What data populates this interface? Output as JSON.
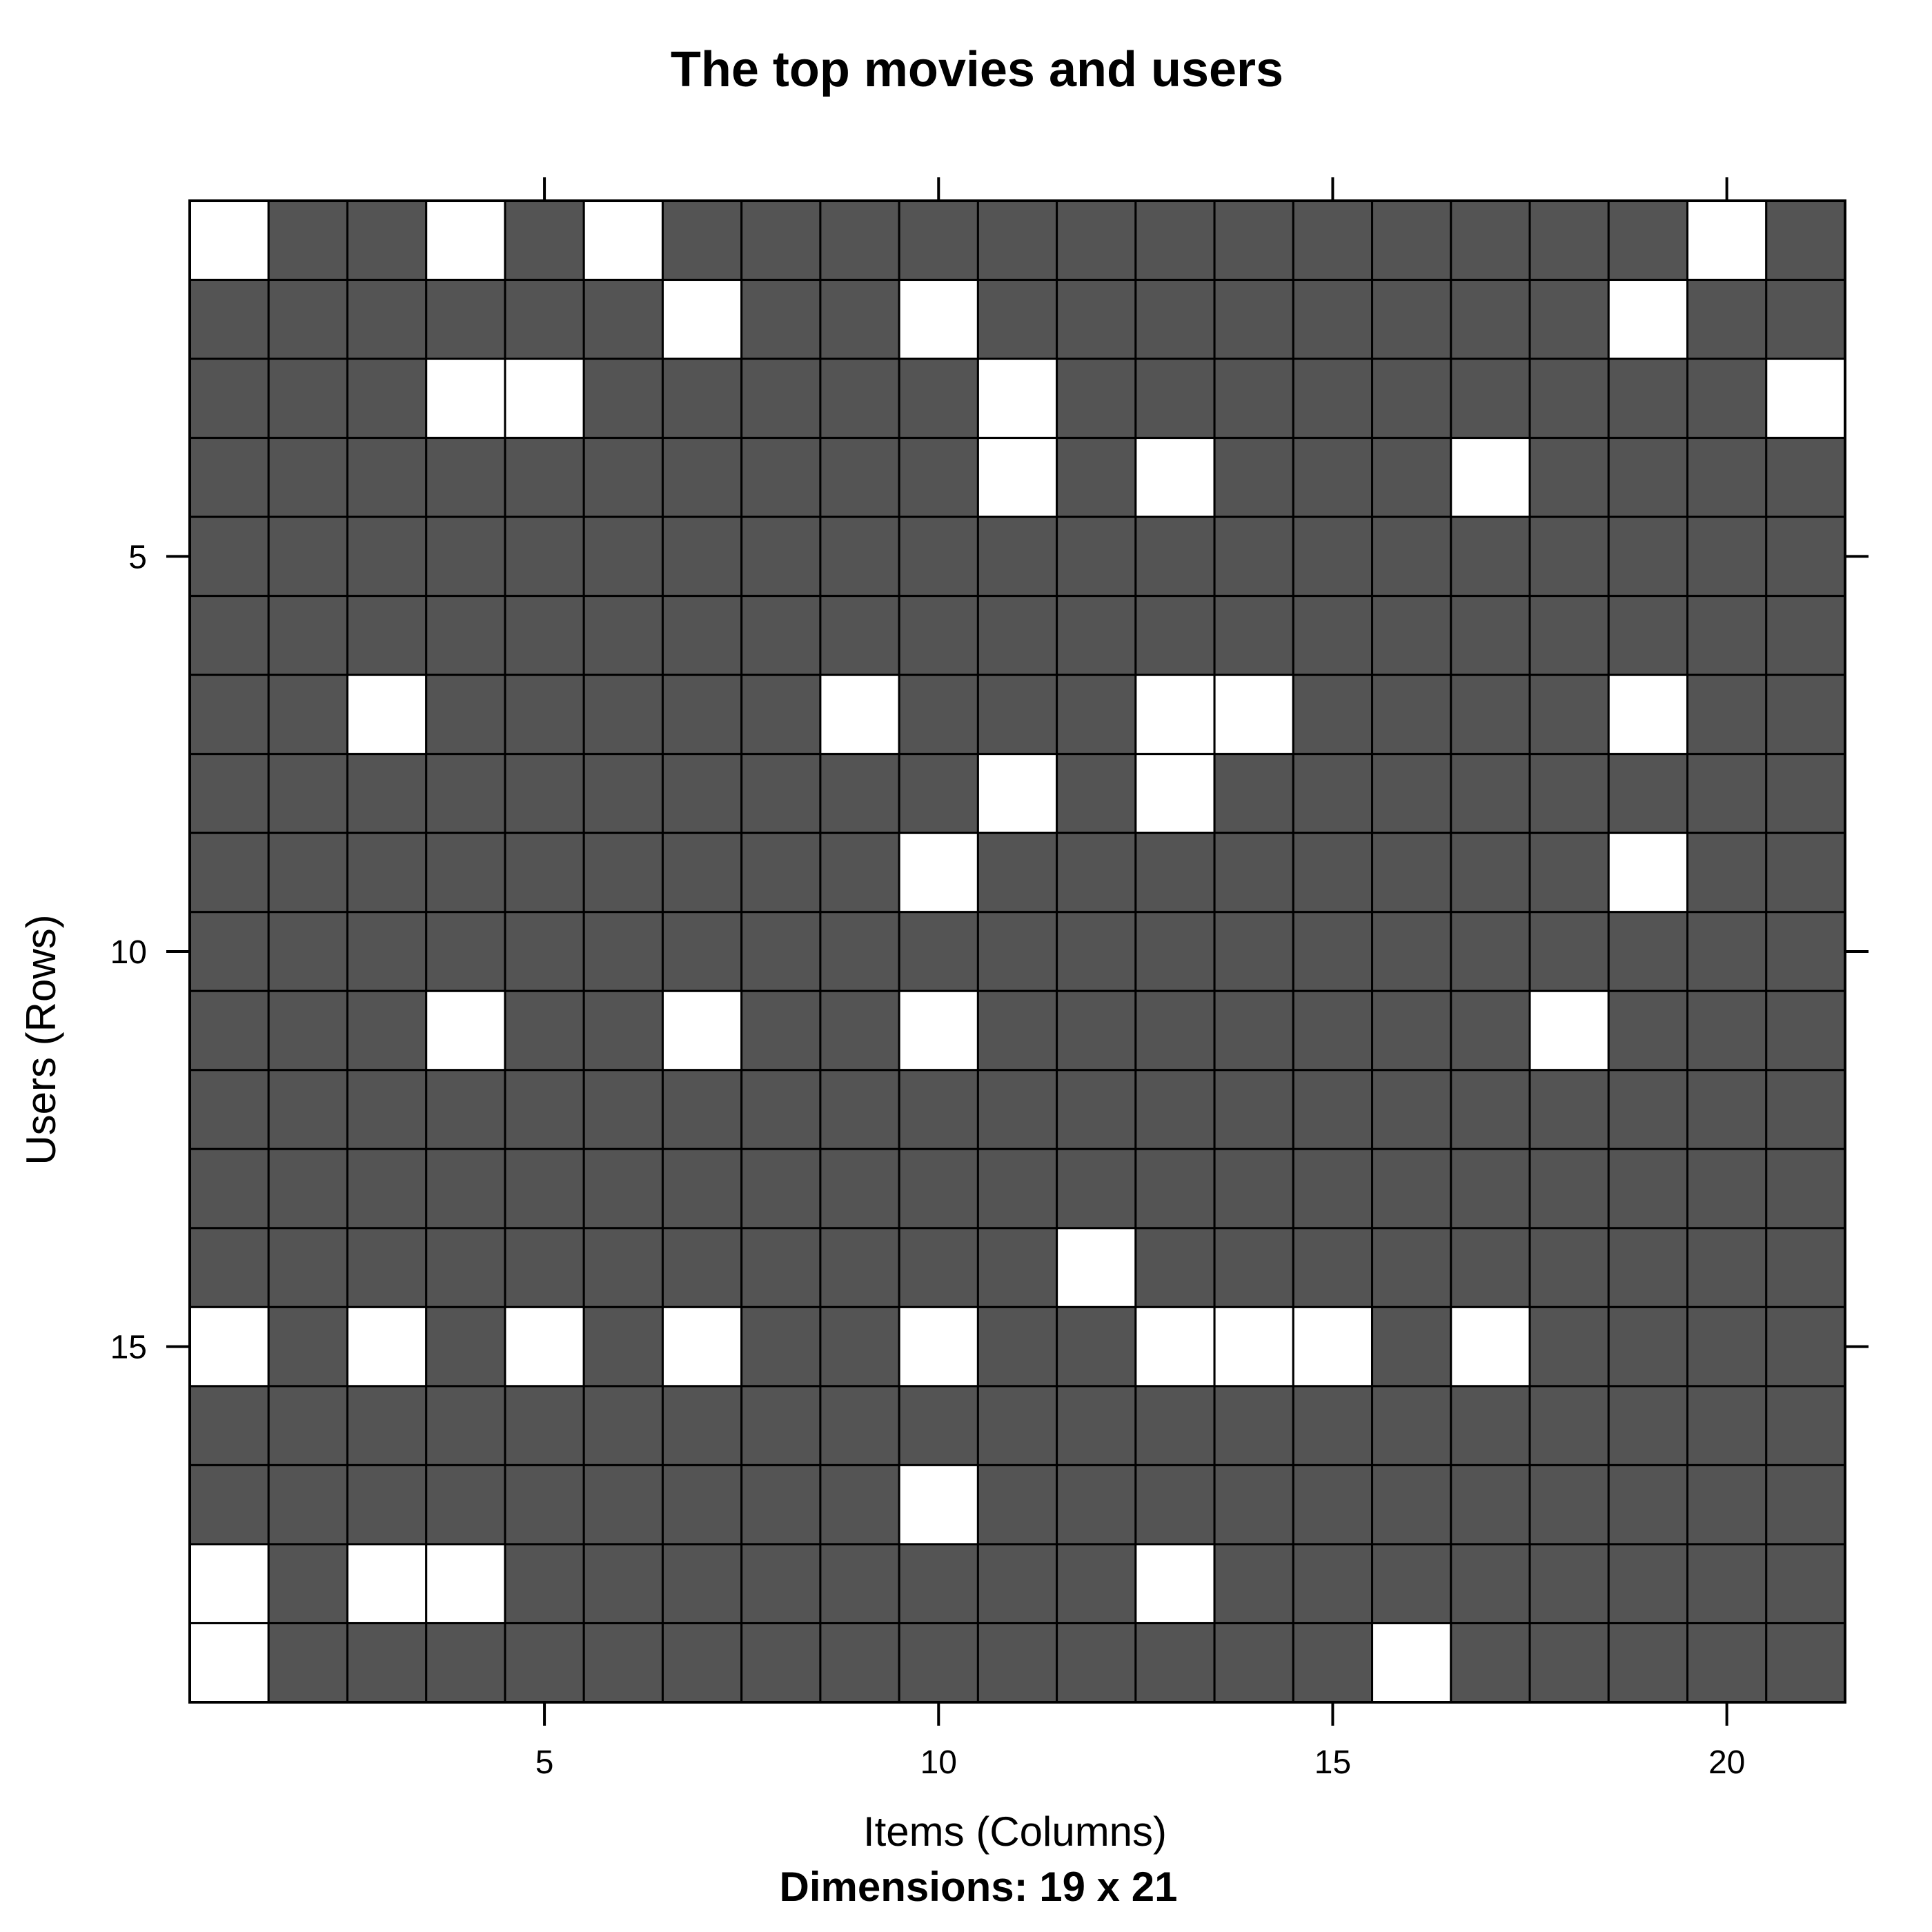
{
  "chart_data": {
    "type": "heatmap",
    "title": "The top movies and users",
    "xlabel": "Items (Columns)",
    "ylabel": "Users (Rows)",
    "sub": "Dimensions: 19 x 21",
    "n_rows": 19,
    "n_cols": 21,
    "x_ticks": [
      5,
      10,
      15,
      20
    ],
    "y_ticks": [
      5,
      10,
      15
    ],
    "xlim": [
      0.5,
      21.5
    ],
    "ylim": [
      0.5,
      19.5
    ],
    "colors": {
      "filled": "#545454",
      "empty": "#ffffff",
      "border": "#000000"
    },
    "matrix": [
      [
        0,
        1,
        1,
        0,
        1,
        0,
        1,
        1,
        1,
        1,
        1,
        1,
        1,
        1,
        1,
        1,
        1,
        1,
        1,
        0,
        1
      ],
      [
        1,
        1,
        1,
        1,
        1,
        1,
        0,
        1,
        1,
        0,
        1,
        1,
        1,
        1,
        1,
        1,
        1,
        1,
        0,
        1,
        1
      ],
      [
        1,
        1,
        1,
        0,
        0,
        1,
        1,
        1,
        1,
        1,
        0,
        1,
        1,
        1,
        1,
        1,
        1,
        1,
        1,
        1,
        0
      ],
      [
        1,
        1,
        1,
        1,
        1,
        1,
        1,
        1,
        1,
        1,
        0,
        1,
        0,
        1,
        1,
        1,
        0,
        1,
        1,
        1,
        1
      ],
      [
        1,
        1,
        1,
        1,
        1,
        1,
        1,
        1,
        1,
        1,
        1,
        1,
        1,
        1,
        1,
        1,
        1,
        1,
        1,
        1,
        1
      ],
      [
        1,
        1,
        1,
        1,
        1,
        1,
        1,
        1,
        1,
        1,
        1,
        1,
        1,
        1,
        1,
        1,
        1,
        1,
        1,
        1,
        1
      ],
      [
        1,
        1,
        0,
        1,
        1,
        1,
        1,
        1,
        0,
        1,
        1,
        1,
        0,
        0,
        1,
        1,
        1,
        1,
        0,
        1,
        1
      ],
      [
        1,
        1,
        1,
        1,
        1,
        1,
        1,
        1,
        1,
        1,
        0,
        1,
        0,
        1,
        1,
        1,
        1,
        1,
        1,
        1,
        1
      ],
      [
        1,
        1,
        1,
        1,
        1,
        1,
        1,
        1,
        1,
        0,
        1,
        1,
        1,
        1,
        1,
        1,
        1,
        1,
        0,
        1,
        1
      ],
      [
        1,
        1,
        1,
        1,
        1,
        1,
        1,
        1,
        1,
        1,
        1,
        1,
        1,
        1,
        1,
        1,
        1,
        1,
        1,
        1,
        1
      ],
      [
        1,
        1,
        1,
        0,
        1,
        1,
        0,
        1,
        1,
        0,
        1,
        1,
        1,
        1,
        1,
        1,
        1,
        0,
        1,
        1,
        1
      ],
      [
        1,
        1,
        1,
        1,
        1,
        1,
        1,
        1,
        1,
        1,
        1,
        1,
        1,
        1,
        1,
        1,
        1,
        1,
        1,
        1,
        1
      ],
      [
        1,
        1,
        1,
        1,
        1,
        1,
        1,
        1,
        1,
        1,
        1,
        1,
        1,
        1,
        1,
        1,
        1,
        1,
        1,
        1,
        1
      ],
      [
        1,
        1,
        1,
        1,
        1,
        1,
        1,
        1,
        1,
        1,
        1,
        0,
        1,
        1,
        1,
        1,
        1,
        1,
        1,
        1,
        1
      ],
      [
        0,
        1,
        0,
        1,
        0,
        1,
        0,
        1,
        1,
        0,
        1,
        1,
        0,
        0,
        0,
        1,
        0,
        1,
        1,
        1,
        1
      ],
      [
        1,
        1,
        1,
        1,
        1,
        1,
        1,
        1,
        1,
        1,
        1,
        1,
        1,
        1,
        1,
        1,
        1,
        1,
        1,
        1,
        1
      ],
      [
        1,
        1,
        1,
        1,
        1,
        1,
        1,
        1,
        1,
        0,
        1,
        1,
        1,
        1,
        1,
        1,
        1,
        1,
        1,
        1,
        1
      ],
      [
        0,
        1,
        0,
        0,
        1,
        1,
        1,
        1,
        1,
        1,
        1,
        1,
        0,
        1,
        1,
        1,
        1,
        1,
        1,
        1,
        1
      ],
      [
        0,
        1,
        1,
        1,
        1,
        1,
        1,
        1,
        1,
        1,
        1,
        1,
        1,
        1,
        1,
        0,
        1,
        1,
        1,
        1,
        1
      ]
    ]
  }
}
